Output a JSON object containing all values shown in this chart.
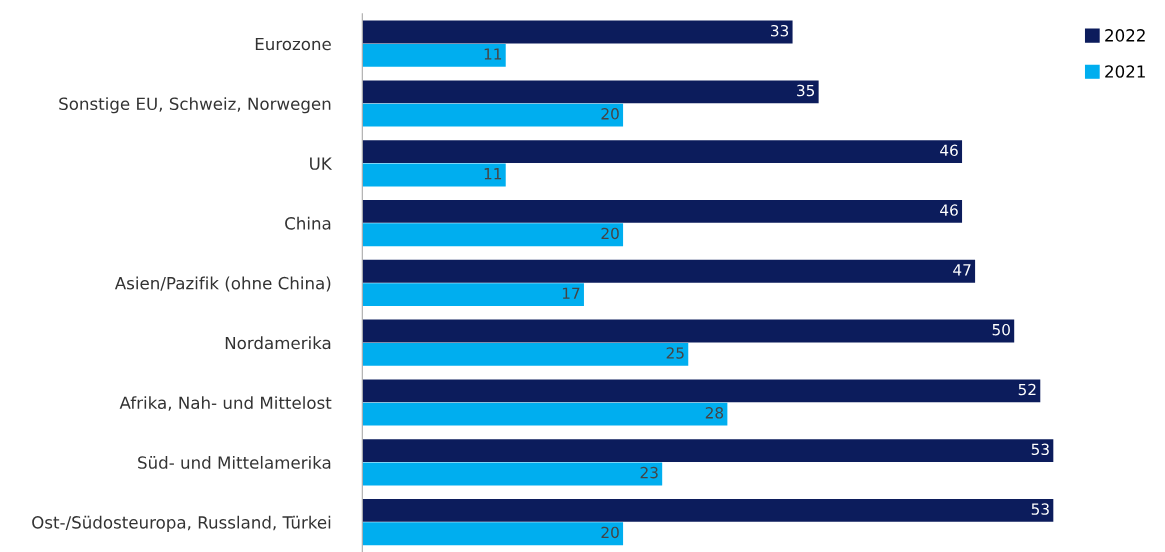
{
  "chart_data": {
    "type": "bar",
    "orientation": "horizontal",
    "categories": [
      "Eurozone",
      "Sonstige EU, Schweiz, Norwegen",
      "UK",
      "China",
      "Asien/Pazifik (ohne China)",
      "Nordamerika",
      "Afrika, Nah- und Mittelost",
      "Süd- und Mittelamerika",
      "Ost-/Südosteuropa, Russland, Türkei"
    ],
    "series": [
      {
        "name": "2022",
        "color": "#0c1c5c",
        "values": [
          33,
          35,
          46,
          46,
          47,
          50,
          52,
          53,
          53
        ]
      },
      {
        "name": "2021",
        "color": "#00aeef",
        "values": [
          11,
          20,
          11,
          20,
          17,
          25,
          28,
          23,
          20
        ]
      }
    ],
    "data_labels": true,
    "legend": "top right",
    "grid": false
  }
}
